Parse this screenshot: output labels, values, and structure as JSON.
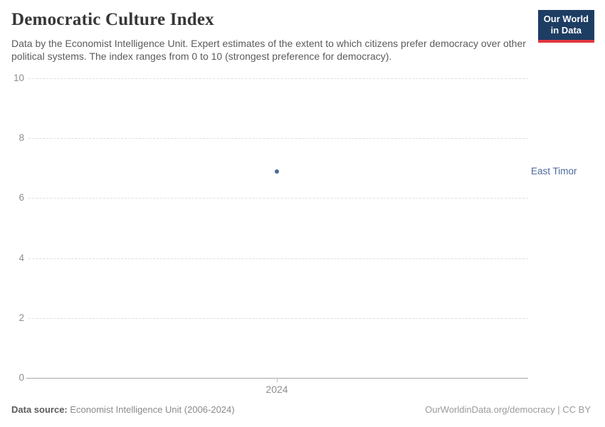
{
  "header": {
    "title": "Democratic Culture Index",
    "subtitle": "Data by the Economist Intelligence Unit. Expert estimates of the extent to which citizens prefer democracy over other political systems. The index ranges from 0 to 10 (strongest preference for democracy)."
  },
  "logo": {
    "line1": "Our World",
    "line2": "in Data"
  },
  "footer": {
    "source_label": "Data source:",
    "source_text": " Economist Intelligence Unit (2006-2024)",
    "link_text": "OurWorldinData.org/democracy | CC BY"
  },
  "colors": {
    "accent_blue": "#4c6a9c",
    "logo_navy": "#1d3d63",
    "logo_red": "#e0373f",
    "gridline": "#dedede",
    "axis_line": "#a7a7a7",
    "tick_label": "#8e8e8e"
  },
  "chart_data": {
    "type": "scatter",
    "title": "Democratic Culture Index",
    "x": [
      2024
    ],
    "series": [
      {
        "name": "East Timor",
        "values": [
          6.88
        ]
      }
    ],
    "categories": [
      2024
    ],
    "xlabel": "",
    "ylabel": "",
    "ylim": [
      0,
      10
    ],
    "yticks": [
      0,
      2,
      4,
      6,
      8,
      10
    ],
    "xticks": [
      "2024"
    ],
    "grid": true,
    "legend_position": "right-of-point",
    "point_color": "#4c6a9c"
  }
}
